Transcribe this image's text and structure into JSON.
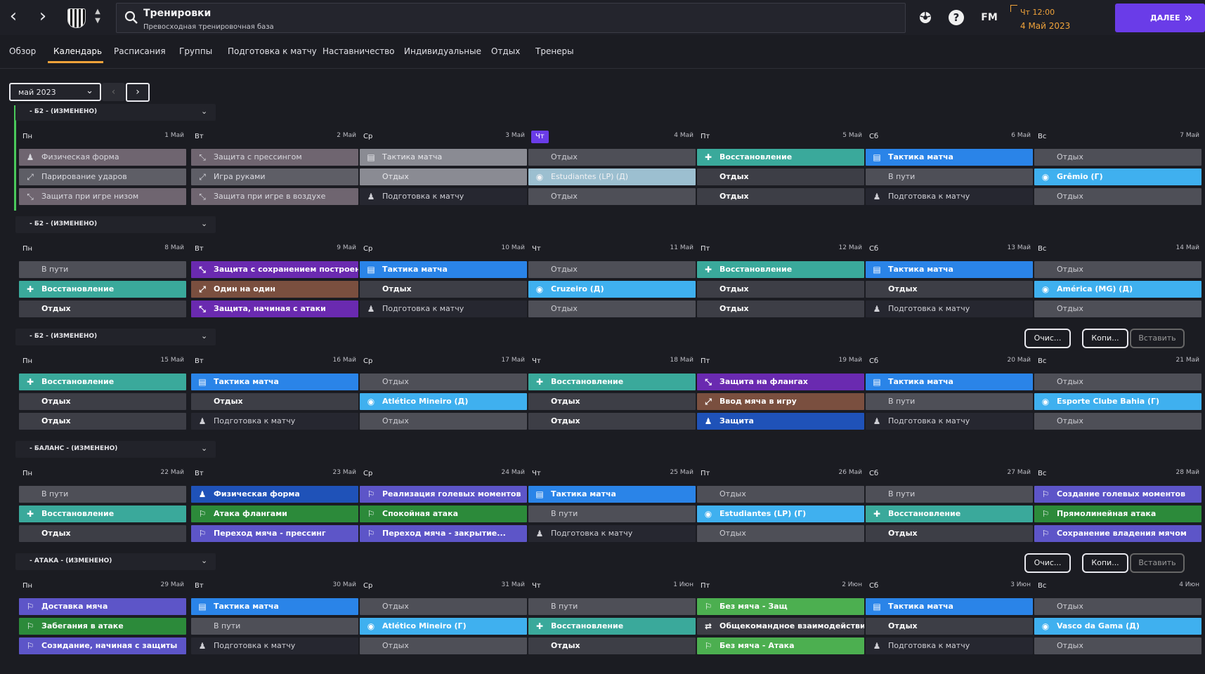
{
  "topbar": {
    "title": "Тренировки",
    "subtitle": "Превосходная тренировочная база",
    "time": "Чт 12:00",
    "date": "4 Май 2023",
    "next_label": "ДАЛЕЕ",
    "fm": "FM",
    "back_icon": "chevron-left-icon",
    "forward_icon": "chevron-right-icon",
    "help": "?"
  },
  "tabs": [
    "Обзор",
    "Календарь",
    "Расписания",
    "Группы",
    "Подготовка к матчу",
    "Наставничество",
    "Индивидуальные",
    "Отдых",
    "Тренеры"
  ],
  "active_tab": 1,
  "month": {
    "label": "май 2023"
  },
  "actions": {
    "clear": "Очис...",
    "copy": "Копи...",
    "paste": "Вставить"
  },
  "weeks": [
    {
      "label": "- Б2 - (ИЗМЕНЕНО)",
      "show_actions": false,
      "current": true,
      "days": [
        {
          "name": "Пн",
          "date": "1 Май",
          "sessions": [
            [
              "Физическая форма",
              "pink",
              "person"
            ],
            [
              "Парирование ударов",
              "grey",
              "dive"
            ],
            [
              "Защита при игре низом",
              "pink",
              "tackle"
            ]
          ]
        },
        {
          "name": "Вт",
          "date": "2 Май",
          "sessions": [
            [
              "Защита с прессингом",
              "pink",
              "tackle"
            ],
            [
              "Игра руками",
              "grey",
              "dive"
            ],
            [
              "Защита при игре в воздухе",
              "pink",
              "tackle"
            ]
          ]
        },
        {
          "name": "Ср",
          "date": "3 Май",
          "sessions": [
            [
              "Тактика матча",
              "light",
              "board"
            ],
            [
              "Отдых",
              "light",
              ""
            ],
            [
              "Подготовка к матчу",
              "prep",
              "person"
            ]
          ]
        },
        {
          "name": "Чт",
          "date": "4 Май",
          "today": true,
          "sessions": [
            [
              "Отдых",
              "rest",
              ""
            ],
            [
              "Estudiantes (LP) (Д)",
              "match",
              "crest"
            ],
            [
              "Отдых",
              "rest",
              ""
            ]
          ]
        },
        {
          "name": "Пт",
          "date": "5 Май",
          "sessions": [
            [
              "Восстановление",
              "teal",
              "recover"
            ],
            [
              "Отдых",
              "restb",
              ""
            ],
            [
              "Отдых",
              "restb",
              ""
            ]
          ]
        },
        {
          "name": "Сб",
          "date": "6 Май",
          "sessions": [
            [
              "Тактика матча",
              "blue",
              "board"
            ],
            [
              "В пути",
              "rest",
              ""
            ],
            [
              "Подготовка к матчу",
              "prep",
              "person"
            ]
          ]
        },
        {
          "name": "Вс",
          "date": "7 Май",
          "sessions": [
            [
              "Отдых",
              "rest",
              ""
            ],
            [
              "Grêmio (Г)",
              "sky",
              "crest"
            ],
            [
              "Отдых",
              "rest",
              ""
            ]
          ]
        }
      ]
    },
    {
      "label": "- Б2 - (ИЗМЕНЕНО)",
      "show_actions": false,
      "days": [
        {
          "name": "Пн",
          "date": "8 Май",
          "sessions": [
            [
              "В пути",
              "rest",
              ""
            ],
            [
              "Восстановление",
              "teal",
              "recover"
            ],
            [
              "Отдых",
              "restb",
              ""
            ]
          ]
        },
        {
          "name": "Вт",
          "date": "9 Май",
          "sessions": [
            [
              "Защита с сохранением построения",
              "purple",
              "tackle"
            ],
            [
              "Один на один",
              "brown",
              "dive"
            ],
            [
              "Защита, начиная с атаки",
              "purple",
              "tackle"
            ]
          ]
        },
        {
          "name": "Ср",
          "date": "10 Май",
          "sessions": [
            [
              "Тактика матча",
              "blue",
              "board"
            ],
            [
              "Отдых",
              "restb",
              ""
            ],
            [
              "Подготовка к матчу",
              "prep",
              "person"
            ]
          ]
        },
        {
          "name": "Чт",
          "date": "11 Май",
          "sessions": [
            [
              "Отдых",
              "rest",
              ""
            ],
            [
              "Cruzeiro (Д)",
              "sky",
              "crest"
            ],
            [
              "Отдых",
              "rest",
              ""
            ]
          ]
        },
        {
          "name": "Пт",
          "date": "12 Май",
          "sessions": [
            [
              "Восстановление",
              "teal",
              "recover"
            ],
            [
              "Отдых",
              "restb",
              ""
            ],
            [
              "Отдых",
              "restb",
              ""
            ]
          ]
        },
        {
          "name": "Сб",
          "date": "13 Май",
          "sessions": [
            [
              "Тактика матча",
              "blue",
              "board"
            ],
            [
              "Отдых",
              "restb",
              ""
            ],
            [
              "Подготовка к матчу",
              "prep",
              "person"
            ]
          ]
        },
        {
          "name": "Вс",
          "date": "14 Май",
          "sessions": [
            [
              "Отдых",
              "rest",
              ""
            ],
            [
              "América (MG) (Д)",
              "sky",
              "crest"
            ],
            [
              "Отдых",
              "rest",
              ""
            ]
          ]
        }
      ]
    },
    {
      "label": "- Б2 - (ИЗМЕНЕНО)",
      "show_actions": true,
      "days": [
        {
          "name": "Пн",
          "date": "15 Май",
          "sessions": [
            [
              "Восстановление",
              "teal",
              "recover"
            ],
            [
              "Отдых",
              "restb",
              ""
            ],
            [
              "Отдых",
              "restb",
              ""
            ]
          ]
        },
        {
          "name": "Вт",
          "date": "16 Май",
          "sessions": [
            [
              "Тактика матча",
              "blue",
              "board"
            ],
            [
              "Отдых",
              "restb",
              ""
            ],
            [
              "Подготовка к матчу",
              "prep",
              "person"
            ]
          ]
        },
        {
          "name": "Ср",
          "date": "17 Май",
          "sessions": [
            [
              "Отдых",
              "rest",
              ""
            ],
            [
              "Atlético Mineiro (Д)",
              "sky",
              "crest"
            ],
            [
              "Отдых",
              "rest",
              ""
            ]
          ]
        },
        {
          "name": "Чт",
          "date": "18 Май",
          "sessions": [
            [
              "Восстановление",
              "teal",
              "recover"
            ],
            [
              "Отдых",
              "restb",
              ""
            ],
            [
              "Отдых",
              "restb",
              ""
            ]
          ]
        },
        {
          "name": "Пт",
          "date": "19 Май",
          "sessions": [
            [
              "Защита на флангах",
              "purple",
              "tackle"
            ],
            [
              "Ввод мяча в игру",
              "brown",
              "dive"
            ],
            [
              "Защита",
              "navy",
              "person"
            ]
          ]
        },
        {
          "name": "Сб",
          "date": "20 Май",
          "sessions": [
            [
              "Тактика матча",
              "blue",
              "board"
            ],
            [
              "В пути",
              "rest",
              ""
            ],
            [
              "Подготовка к матчу",
              "prep",
              "person"
            ]
          ]
        },
        {
          "name": "Вс",
          "date": "21 Май",
          "sessions": [
            [
              "Отдых",
              "rest",
              ""
            ],
            [
              "Esporte Clube Bahia (Г)",
              "sky",
              "crest"
            ],
            [
              "Отдых",
              "rest",
              ""
            ]
          ]
        }
      ]
    },
    {
      "label": "- БАЛАНС - (ИЗМЕНЕНО)",
      "show_actions": false,
      "days": [
        {
          "name": "Пн",
          "date": "22 Май",
          "sessions": [
            [
              "В пути",
              "rest",
              ""
            ],
            [
              "Восстановление",
              "teal",
              "recover"
            ],
            [
              "Отдых",
              "restb",
              ""
            ]
          ]
        },
        {
          "name": "Вт",
          "date": "23 Май",
          "sessions": [
            [
              "Физическая форма",
              "navy",
              "person"
            ],
            [
              "Атака флангами",
              "green",
              "run"
            ],
            [
              "Переход мяча - прессинг",
              "violet",
              "run"
            ]
          ]
        },
        {
          "name": "Ср",
          "date": "24 Май",
          "sessions": [
            [
              "Реализация голевых моментов",
              "violet",
              "run"
            ],
            [
              "Спокойная атака",
              "green",
              "run"
            ],
            [
              "Переход мяча - закрытие...",
              "violet",
              "run"
            ]
          ]
        },
        {
          "name": "Чт",
          "date": "25 Май",
          "sessions": [
            [
              "Тактика матча",
              "blue",
              "board"
            ],
            [
              "В пути",
              "rest",
              ""
            ],
            [
              "Подготовка к матчу",
              "prep",
              "person"
            ]
          ]
        },
        {
          "name": "Пт",
          "date": "26 Май",
          "sessions": [
            [
              "Отдых",
              "rest",
              ""
            ],
            [
              "Estudiantes (LP) (Г)",
              "sky",
              "crest"
            ],
            [
              "Отдых",
              "rest",
              ""
            ]
          ]
        },
        {
          "name": "Сб",
          "date": "27 Май",
          "sessions": [
            [
              "В пути",
              "rest",
              ""
            ],
            [
              "Восстановление",
              "teal",
              "recover"
            ],
            [
              "Отдых",
              "restb",
              ""
            ]
          ]
        },
        {
          "name": "Вс",
          "date": "28 Май",
          "sessions": [
            [
              "Создание голевых моментов",
              "violet",
              "run"
            ],
            [
              "Прямолинейная атака",
              "green",
              "run"
            ],
            [
              "Сохранение владения мячом",
              "violet",
              "run"
            ]
          ]
        }
      ]
    },
    {
      "label": "- АТАКА - (ИЗМЕНЕНО)",
      "show_actions": true,
      "days": [
        {
          "name": "Пн",
          "date": "29 Май",
          "sessions": [
            [
              "Доставка мяча",
              "violet",
              "run"
            ],
            [
              "Забегания в атаке",
              "green",
              "run"
            ],
            [
              "Созидание, начиная с защиты",
              "violet",
              "run"
            ]
          ]
        },
        {
          "name": "Вт",
          "date": "30 Май",
          "sessions": [
            [
              "Тактика матча",
              "blue",
              "board"
            ],
            [
              "В пути",
              "rest",
              ""
            ],
            [
              "Подготовка к матчу",
              "prep",
              "person"
            ]
          ]
        },
        {
          "name": "Ср",
          "date": "31 Май",
          "sessions": [
            [
              "Отдых",
              "rest",
              ""
            ],
            [
              "Atlético Mineiro (Г)",
              "sky",
              "crest"
            ],
            [
              "Отдых",
              "rest",
              ""
            ]
          ]
        },
        {
          "name": "Чт",
          "date": "1 Июн",
          "sessions": [
            [
              "В пути",
              "rest",
              ""
            ],
            [
              "Восстановление",
              "teal",
              "recover"
            ],
            [
              "Отдых",
              "restb",
              ""
            ]
          ]
        },
        {
          "name": "Пт",
          "date": "2 Июн",
          "sessions": [
            [
              "Без мяча - Защ",
              "lime",
              "run"
            ],
            [
              "Общекомандное взаимодействие",
              "restb",
              "team"
            ],
            [
              "Без мяча - Атака",
              "lime",
              "run"
            ]
          ]
        },
        {
          "name": "Сб",
          "date": "3 Июн",
          "sessions": [
            [
              "Тактика матча",
              "blue",
              "board"
            ],
            [
              "Отдых",
              "restb",
              ""
            ],
            [
              "Подготовка к матчу",
              "prep",
              "person"
            ]
          ]
        },
        {
          "name": "Вс",
          "date": "4 Июн",
          "sessions": [
            [
              "Отдых",
              "rest",
              ""
            ],
            [
              "Vasco da Gama (Д)",
              "sky",
              "crest"
            ],
            [
              "Отдых",
              "rest",
              ""
            ]
          ]
        }
      ]
    }
  ]
}
